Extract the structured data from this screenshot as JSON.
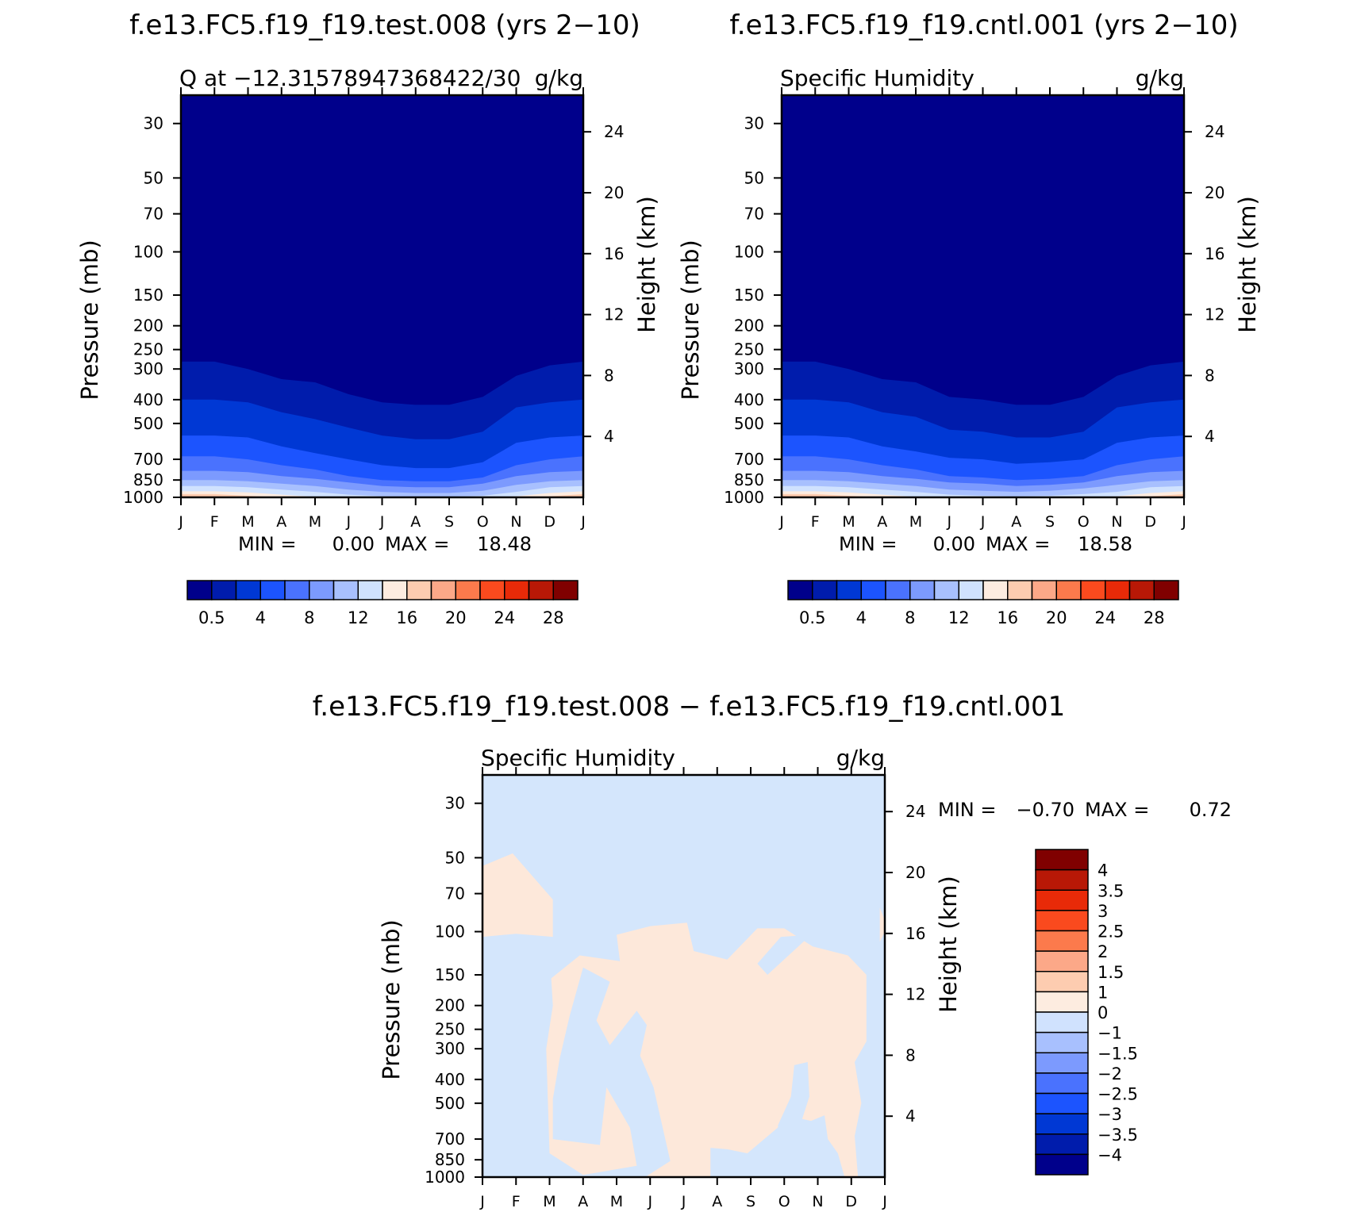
{
  "title_left": "f.e13.FC5.f19_f19.test.008 (yrs 2−10)",
  "title_right": "f.e13.FC5.f19_f19.cntl.001 (yrs 2−10)",
  "title_bottom": "f.e13.FC5.f19_f19.test.008 − f.e13.FC5.f19_f19.cntl.001",
  "colors": {
    "abs_scale": [
      "#00008b",
      "#001cac",
      "#0038d4",
      "#1c54fe",
      "#4a72fe",
      "#7c9afe",
      "#a8c0fe",
      "#d0e2fe",
      "#fdece0",
      "#fdccb0",
      "#fca888",
      "#fc7a4c",
      "#fa4a1e",
      "#e82a08",
      "#b81806",
      "#800000"
    ],
    "diff_scale": [
      "#00008b",
      "#001cac",
      "#0038d4",
      "#1c54fe",
      "#4a72fe",
      "#7c9afe",
      "#a8c0fe",
      "#d0e2fe",
      "#fdece0",
      "#fdccb0",
      "#fca888",
      "#fc7a4c",
      "#fa4a1e",
      "#e82a08",
      "#b81806",
      "#800000"
    ]
  },
  "chart_data": [
    {
      "id": "panel-test",
      "type": "heatmap",
      "subtitle_left": "Q at −12.31578947368422/30",
      "subtitle_right": "g/kg",
      "ylabel": "Pressure (mb)",
      "ylabel_right": "Height (km)",
      "months": [
        "J",
        "F",
        "M",
        "A",
        "M",
        "J",
        "J",
        "A",
        "S",
        "O",
        "N",
        "D",
        "J"
      ],
      "pressure_ticks": [
        30,
        50,
        70,
        100,
        150,
        200,
        250,
        300,
        400,
        500,
        700,
        850,
        1000
      ],
      "height_ticks": [
        4,
        8,
        12,
        16,
        20,
        24
      ],
      "ylim": [
        1000,
        23
      ],
      "stats": {
        "min_label": "MIN =",
        "min": "0.00",
        "max_label": "MAX =",
        "max": "18.48"
      },
      "colorbar_labels": [
        "0.5",
        "4",
        "8",
        "12",
        "16",
        "20",
        "24",
        "28"
      ],
      "contour_levels": [
        0.5,
        2,
        4,
        6,
        8,
        10,
        12,
        14,
        16,
        18,
        20,
        22,
        24,
        26,
        28
      ],
      "field": "abs",
      "boundary_pressure_at_month": {
        "0.5": [
          280,
          280,
          300,
          330,
          340,
          380,
          410,
          420,
          420,
          390,
          320,
          290,
          280
        ],
        "2": [
          400,
          400,
          410,
          450,
          480,
          520,
          560,
          580,
          580,
          540,
          430,
          410,
          400
        ],
        "4": [
          560,
          560,
          570,
          620,
          660,
          700,
          740,
          760,
          760,
          720,
          600,
          570,
          560
        ],
        "6": [
          680,
          680,
          700,
          740,
          770,
          820,
          850,
          860,
          860,
          830,
          740,
          700,
          680
        ],
        "8": [
          780,
          780,
          790,
          820,
          840,
          870,
          900,
          910,
          910,
          880,
          820,
          790,
          780
        ],
        "10": [
          850,
          850,
          860,
          880,
          900,
          930,
          950,
          960,
          960,
          940,
          890,
          860,
          850
        ],
        "12": [
          900,
          900,
          910,
          930,
          950,
          975,
          990,
          995,
          995,
          985,
          950,
          910,
          900
        ],
        "14": [
          945,
          945,
          955,
          975,
          995,
          1010,
          1010,
          1010,
          1010,
          1010,
          990,
          960,
          945
        ],
        "16": [
          970,
          970,
          985,
          1010,
          1010,
          1010,
          1010,
          1010,
          1010,
          1010,
          1010,
          990,
          970
        ],
        "18": [
          990,
          990,
          1010,
          1010,
          1010,
          1010,
          1010,
          1010,
          1010,
          1010,
          1010,
          1005,
          990
        ]
      }
    },
    {
      "id": "panel-cntl",
      "type": "heatmap",
      "subtitle_left": "Specific Humidity",
      "subtitle_right": "g/kg",
      "ylabel": "Pressure (mb)",
      "ylabel_right": "Height (km)",
      "months": [
        "J",
        "F",
        "M",
        "A",
        "M",
        "J",
        "J",
        "A",
        "S",
        "O",
        "N",
        "D",
        "J"
      ],
      "pressure_ticks": [
        30,
        50,
        70,
        100,
        150,
        200,
        250,
        300,
        400,
        500,
        700,
        850,
        1000
      ],
      "height_ticks": [
        4,
        8,
        12,
        16,
        20,
        24
      ],
      "ylim": [
        1000,
        23
      ],
      "stats": {
        "min_label": "MIN =",
        "min": "0.00",
        "max_label": "MAX =",
        "max": "18.58"
      },
      "colorbar_labels": [
        "0.5",
        "4",
        "8",
        "12",
        "16",
        "20",
        "24",
        "28"
      ],
      "contour_levels": [
        0.5,
        2,
        4,
        6,
        8,
        10,
        12,
        14,
        16,
        18,
        20,
        22,
        24,
        26,
        28
      ],
      "field": "abs",
      "boundary_pressure_at_month": {
        "0.5": [
          280,
          280,
          300,
          330,
          340,
          390,
          400,
          420,
          420,
          390,
          320,
          290,
          280
        ],
        "2": [
          400,
          400,
          410,
          450,
          470,
          530,
          540,
          570,
          570,
          540,
          430,
          410,
          400
        ],
        "4": [
          560,
          560,
          570,
          620,
          650,
          690,
          700,
          730,
          720,
          700,
          600,
          570,
          560
        ],
        "6": [
          680,
          680,
          700,
          740,
          770,
          820,
          830,
          850,
          840,
          820,
          740,
          700,
          680
        ],
        "8": [
          780,
          780,
          790,
          820,
          840,
          870,
          880,
          900,
          890,
          870,
          820,
          790,
          780
        ],
        "10": [
          850,
          850,
          860,
          880,
          900,
          930,
          940,
          950,
          940,
          920,
          890,
          860,
          850
        ],
        "12": [
          900,
          900,
          910,
          930,
          950,
          975,
          985,
          990,
          985,
          970,
          950,
          910,
          900
        ],
        "14": [
          945,
          945,
          955,
          975,
          995,
          1010,
          1010,
          1010,
          1010,
          1000,
          990,
          960,
          945
        ],
        "16": [
          970,
          970,
          985,
          1010,
          1010,
          1010,
          1010,
          1010,
          1010,
          1010,
          1010,
          990,
          970
        ],
        "18": [
          990,
          990,
          1010,
          1010,
          1010,
          1010,
          1010,
          1010,
          1010,
          1010,
          1010,
          1005,
          990
        ]
      }
    },
    {
      "id": "panel-diff",
      "type": "heatmap",
      "subtitle_left": "Specific Humidity",
      "subtitle_right": "g/kg",
      "ylabel": "Pressure (mb)",
      "ylabel_right": "Height (km)",
      "months": [
        "J",
        "F",
        "M",
        "A",
        "M",
        "J",
        "J",
        "A",
        "S",
        "O",
        "N",
        "D",
        "J"
      ],
      "pressure_ticks": [
        30,
        50,
        70,
        100,
        150,
        200,
        250,
        300,
        400,
        500,
        700,
        850,
        1000
      ],
      "height_ticks": [
        4,
        8,
        12,
        16,
        20,
        24
      ],
      "ylim": [
        1000,
        23
      ],
      "stats": {
        "min_label": "MIN =",
        "min": "−0.70",
        "max_label": "MAX =",
        "max": "0.72"
      },
      "colorbar_labels": [
        "4",
        "3.5",
        "3",
        "2.5",
        "2",
        "1.5",
        "1",
        "0",
        "−1",
        "−1.5",
        "−2",
        "−2.5",
        "−3",
        "−3.5",
        "−4"
      ],
      "contour_levels": [
        -4,
        -3.5,
        -3,
        -2.5,
        -2,
        -1.5,
        -1,
        0,
        1,
        1.5,
        2,
        2.5,
        3,
        3.5,
        4
      ],
      "field": "diff",
      "positive_regions": [
        [
          [
            0,
            54
          ],
          [
            0.9,
            48
          ],
          [
            2.1,
            74
          ],
          [
            2.1,
            105
          ],
          [
            1.0,
            102
          ],
          [
            0,
            105
          ]
        ],
        [
          [
            2.05,
            155
          ],
          [
            2.9,
            125
          ],
          [
            4.1,
            132
          ],
          [
            4.0,
            103
          ],
          [
            5.0,
            95
          ],
          [
            6.1,
            92
          ],
          [
            6.3,
            120
          ],
          [
            7.3,
            130
          ],
          [
            8.2,
            97
          ],
          [
            9.0,
            97
          ],
          [
            9.85,
            115
          ],
          [
            10.9,
            125
          ],
          [
            11.45,
            150
          ],
          [
            11.45,
            280
          ],
          [
            11.1,
            340
          ],
          [
            11.3,
            500
          ],
          [
            11.1,
            680
          ],
          [
            11.2,
            1010
          ],
          [
            10.8,
            1010
          ],
          [
            10.6,
            800
          ],
          [
            10.3,
            700
          ],
          [
            10.2,
            560
          ],
          [
            9.8,
            590
          ],
          [
            9.0,
            560
          ],
          [
            8.8,
            630
          ],
          [
            7.9,
            800
          ],
          [
            7.3,
            770
          ],
          [
            6.8,
            760
          ],
          [
            6.8,
            1010
          ],
          [
            4.85,
            1010
          ],
          [
            5.6,
            860
          ],
          [
            5.4,
            650
          ],
          [
            5.1,
            430
          ],
          [
            4.7,
            320
          ],
          [
            4.9,
            240
          ],
          [
            4.6,
            210
          ],
          [
            3.8,
            290
          ],
          [
            3.4,
            230
          ],
          [
            3.8,
            160
          ],
          [
            3.0,
            140
          ],
          [
            2.6,
            220
          ],
          [
            2.3,
            330
          ],
          [
            2.1,
            480
          ],
          [
            2.1,
            700
          ],
          [
            3.5,
            740
          ],
          [
            3.7,
            430
          ],
          [
            4.4,
            630
          ],
          [
            4.6,
            900
          ],
          [
            3.0,
            980
          ],
          [
            2.0,
            800
          ],
          [
            1.9,
            300
          ],
          [
            2.1,
            200
          ]
        ],
        [
          [
            11.85,
            80
          ],
          [
            12,
            90
          ],
          [
            12,
            100
          ],
          [
            11.85,
            110
          ]
        ]
      ],
      "negative_islands_in_positive": [
        [
          [
            8.9,
            105
          ],
          [
            9.8,
            103
          ],
          [
            8.5,
            150
          ],
          [
            8.2,
            135
          ]
        ],
        [
          [
            9.3,
            350
          ],
          [
            9.7,
            340
          ],
          [
            9.75,
            470
          ],
          [
            9.5,
            600
          ],
          [
            8.8,
            620
          ],
          [
            9.2,
            470
          ]
        ]
      ]
    }
  ]
}
